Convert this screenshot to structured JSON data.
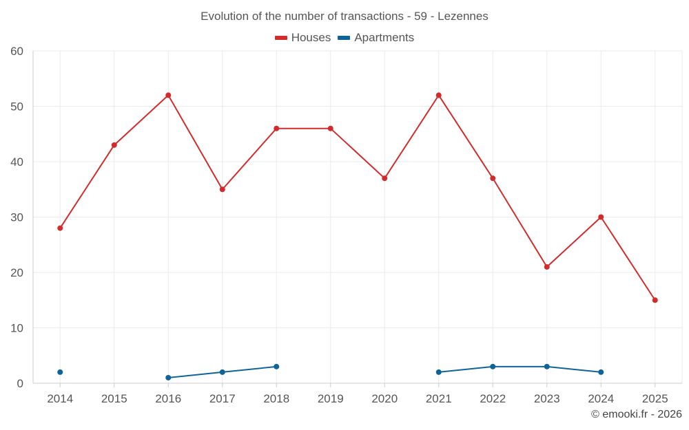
{
  "chart_data": {
    "type": "line",
    "title": "Evolution of the number of transactions - 59 - Lezennes",
    "categories": [
      "2014",
      "2015",
      "2016",
      "2017",
      "2018",
      "2019",
      "2020",
      "2021",
      "2022",
      "2023",
      "2024",
      "2025"
    ],
    "yticks": [
      0,
      10,
      20,
      30,
      40,
      50,
      60
    ],
    "ylim": [
      0,
      60
    ],
    "grid": true,
    "legend_position": "top-center",
    "series": [
      {
        "key": "houses",
        "name": "Houses",
        "color": "#d32b2b",
        "values": [
          28,
          43,
          52,
          35,
          46,
          46,
          37,
          52,
          37,
          21,
          30,
          15
        ]
      },
      {
        "key": "apartments",
        "name": "Apartments",
        "color": "#0e6499",
        "values": [
          2,
          null,
          1,
          2,
          3,
          null,
          null,
          2,
          3,
          3,
          2,
          null
        ]
      }
    ]
  },
  "watermark": "© emooki.fr - 2026"
}
